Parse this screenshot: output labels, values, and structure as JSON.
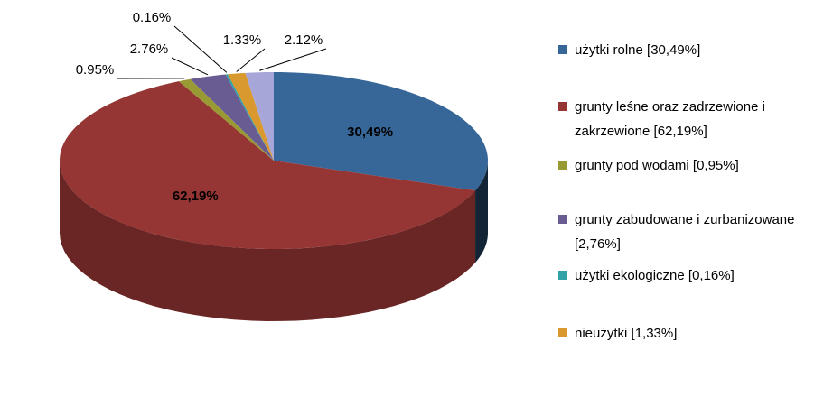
{
  "chart_data": {
    "type": "pie",
    "categories": [
      "użytki rolne [30,49%]",
      "grunty leśne oraz zadrzewione i zakrzewione [62,19%]",
      "grunty pod wodami [0,95%]",
      "grunty zabudowane i zurbanizowane [2,76%]",
      "użytki ekologiczne [0,16%]",
      "nieużytki [1,33%]",
      null
    ],
    "values": [
      30.49,
      62.19,
      0.95,
      2.76,
      0.16,
      1.33,
      2.12
    ],
    "value_labels": [
      "30,49%",
      "62,19%",
      "0.95%",
      "2.76%",
      "0.16%",
      "1.33%",
      "2.12%"
    ],
    "colors": [
      "#376699",
      "#963634",
      "#9a9a35",
      "#685c93",
      "#31a2a8",
      "#d9992e",
      "#a6a6d8"
    ]
  }
}
